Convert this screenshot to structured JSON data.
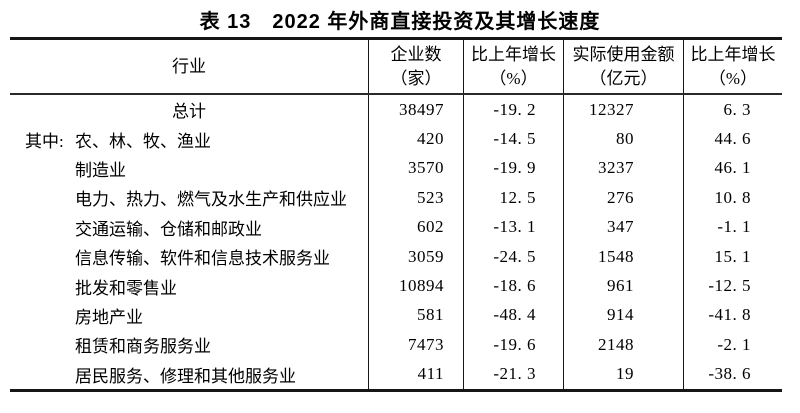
{
  "title": "表 13　2022 年外商直接投资及其增长速度",
  "table": {
    "header": {
      "industry": "行业",
      "enterprises": [
        "企业数",
        "（家）"
      ],
      "enterprise_growth": [
        "比上年增长",
        "（%）"
      ],
      "amount_used": [
        "实际使用金额",
        "（亿元）"
      ],
      "amount_growth": [
        "比上年增长",
        "（%）"
      ]
    },
    "rows": [
      {
        "industry": "总计",
        "enterprises": "38497",
        "enterprise_growth": "-19. 2",
        "amount_used": "12327",
        "amount_growth": "6. 3"
      },
      {
        "prefix": "其中:",
        "industry": "农、林、牧、渔业",
        "enterprises": "420",
        "enterprise_growth": "-14. 5",
        "amount_used": "80",
        "amount_growth": "44. 6"
      },
      {
        "industry": "制造业",
        "enterprises": "3570",
        "enterprise_growth": "-19. 9",
        "amount_used": "3237",
        "amount_growth": "46. 1"
      },
      {
        "industry": "电力、热力、燃气及水生产和供应业",
        "enterprises": "523",
        "enterprise_growth": "12. 5",
        "amount_used": "276",
        "amount_growth": "10. 8"
      },
      {
        "industry": "交通运输、仓储和邮政业",
        "enterprises": "602",
        "enterprise_growth": "-13. 1",
        "amount_used": "347",
        "amount_growth": "-1. 1"
      },
      {
        "industry": "信息传输、软件和信息技术服务业",
        "enterprises": "3059",
        "enterprise_growth": "-24. 5",
        "amount_used": "1548",
        "amount_growth": "15. 1"
      },
      {
        "industry": "批发和零售业",
        "enterprises": "10894",
        "enterprise_growth": "-18. 6",
        "amount_used": "961",
        "amount_growth": "-12. 5"
      },
      {
        "industry": "房地产业",
        "enterprises": "581",
        "enterprise_growth": "-48. 4",
        "amount_used": "914",
        "amount_growth": "-41. 8"
      },
      {
        "industry": "租赁和商务服务业",
        "enterprises": "7473",
        "enterprise_growth": "-19. 6",
        "amount_used": "2148",
        "amount_growth": "-2. 1"
      },
      {
        "industry": "居民服务、修理和其他服务业",
        "enterprises": "411",
        "enterprise_growth": "-21. 3",
        "amount_used": "19",
        "amount_growth": "-38. 6"
      }
    ]
  },
  "chart_data": {
    "type": "table",
    "title": "表13 2022年外商直接投资及其增长速度",
    "columns": [
      "行业",
      "企业数（家）",
      "比上年增长（%）",
      "实际使用金额（亿元）",
      "比上年增长（%）"
    ],
    "rows": [
      [
        "总计",
        38497,
        -19.2,
        12327,
        6.3
      ],
      [
        "农、林、牧、渔业",
        420,
        -14.5,
        80,
        44.6
      ],
      [
        "制造业",
        3570,
        -19.9,
        3237,
        46.1
      ],
      [
        "电力、热力、燃气及水生产和供应业",
        523,
        12.5,
        276,
        10.8
      ],
      [
        "交通运输、仓储和邮政业",
        602,
        -13.1,
        347,
        -1.1
      ],
      [
        "信息传输、软件和信息技术服务业",
        3059,
        -24.5,
        1548,
        15.1
      ],
      [
        "批发和零售业",
        10894,
        -18.6,
        961,
        -12.5
      ],
      [
        "房地产业",
        581,
        -48.4,
        914,
        -41.8
      ],
      [
        "租赁和商务服务业",
        7473,
        -19.6,
        2148,
        -2.1
      ],
      [
        "居民服务、修理和其他服务业",
        411,
        -21.3,
        19,
        -38.6
      ]
    ]
  }
}
